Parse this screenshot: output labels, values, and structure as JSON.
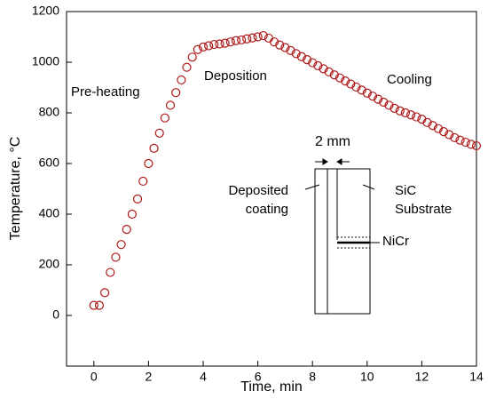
{
  "chart_data": {
    "type": "scatter",
    "x_label": "Time, min",
    "y_label": "Temperature, °C",
    "xlim": [
      -1,
      14
    ],
    "xticks": [
      0,
      2,
      4,
      6,
      8,
      10,
      12,
      14
    ],
    "ylim": [
      -200,
      1200
    ],
    "yticks": [
      0,
      200,
      400,
      600,
      800,
      1000,
      1200
    ],
    "grid": false,
    "series": [
      {
        "color": "#b01818",
        "x": [
          0,
          0.2,
          0.4,
          0.6,
          0.8,
          1,
          1.2,
          1.4,
          1.6,
          1.8,
          2,
          2.2,
          2.4,
          2.6,
          2.8,
          3,
          3.2,
          3.4,
          3.6,
          3.8,
          4,
          4.2,
          4.4,
          4.6,
          4.8,
          5,
          5.2,
          5.4,
          5.6,
          5.8,
          6,
          6.2,
          6.4,
          6.6,
          6.8,
          7,
          7.2,
          7.4,
          7.6,
          7.8,
          8,
          8.2,
          8.4,
          8.6,
          8.8,
          9,
          9.2,
          9.4,
          9.6,
          9.8,
          10,
          10.2,
          10.4,
          10.6,
          10.8,
          11,
          11.2,
          11.4,
          11.6,
          11.8,
          12,
          12.2,
          12.4,
          12.6,
          12.8,
          13,
          13.2,
          13.4,
          13.6,
          13.8,
          14
        ],
        "values": [
          40,
          40,
          90,
          170,
          230,
          280,
          340,
          400,
          460,
          530,
          600,
          660,
          720,
          780,
          830,
          880,
          930,
          980,
          1020,
          1050,
          1060,
          1065,
          1070,
          1072,
          1075,
          1080,
          1085,
          1088,
          1092,
          1096,
          1100,
          1105,
          1095,
          1080,
          1068,
          1058,
          1046,
          1034,
          1022,
          1010,
          998,
          986,
          974,
          962,
          950,
          938,
          926,
          914,
          902,
          890,
          878,
          866,
          854,
          842,
          830,
          818,
          808,
          800,
          792,
          784,
          775,
          762,
          750,
          738,
          726,
          714,
          702,
          692,
          684,
          676,
          670
        ]
      }
    ],
    "annotations": [
      "Pre-heating",
      "Deposition",
      "Cooling"
    ],
    "inset": {
      "scale": "2 mm",
      "coating": [
        "Deposited",
        "coating"
      ],
      "substrate": [
        "SiC",
        "Substrate"
      ],
      "layer": "NiCr"
    }
  }
}
